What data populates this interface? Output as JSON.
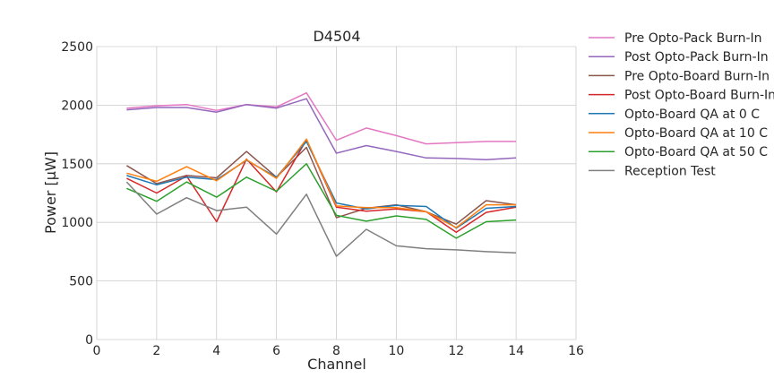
{
  "chart_data": {
    "type": "line",
    "title": "D4504",
    "xlabel": "Channel",
    "ylabel": "Power [μW]",
    "xlim": [
      0,
      16
    ],
    "ylim": [
      0,
      2500
    ],
    "xticks": [
      "0",
      "2",
      "4",
      "6",
      "8",
      "10",
      "12",
      "14",
      "16"
    ],
    "yticks": [
      "0",
      "500",
      "1000",
      "1500",
      "2000",
      "2500"
    ],
    "grid": true,
    "legend_position": "outside-right",
    "x": [
      1,
      2,
      3,
      4,
      5,
      6,
      7,
      8,
      9,
      10,
      11,
      12,
      13,
      14
    ],
    "series": [
      {
        "name": "Pre Opto-Pack Burn-In",
        "color": "#e377c2",
        "values": [
          1975,
          1995,
          2005,
          1955,
          2005,
          1985,
          2105,
          1700,
          1805,
          1740,
          1670,
          1680,
          1690,
          1690
        ]
      },
      {
        "name": "Post Opto-Pack Burn-In",
        "color": "#9467bd",
        "values": [
          1960,
          1980,
          1980,
          1940,
          2005,
          1975,
          2055,
          1590,
          1655,
          1605,
          1550,
          1545,
          1535,
          1550
        ]
      },
      {
        "name": "Pre Opto-Board Burn-In",
        "color": "#8c564b",
        "values": [
          1485,
          1330,
          1400,
          1380,
          1605,
          1385,
          1640,
          1040,
          1120,
          1150,
          1090,
          985,
          1185,
          1150
        ]
      },
      {
        "name": "Post Opto-Board Burn-In",
        "color": "#d62728",
        "values": [
          1375,
          1250,
          1395,
          1005,
          1540,
          1260,
          1705,
          1130,
          1095,
          1115,
          1090,
          915,
          1085,
          1130
        ]
      },
      {
        "name": "Opto-Board QA at 0 C",
        "color": "#1f77b4",
        "values": [
          1400,
          1320,
          1385,
          1365,
          1530,
          1385,
          1690,
          1165,
          1115,
          1145,
          1135,
          950,
          1120,
          1135
        ]
      },
      {
        "name": "Opto-Board QA at 10 C",
        "color": "#ff7f0e",
        "values": [
          1420,
          1350,
          1475,
          1355,
          1535,
          1375,
          1710,
          1140,
          1125,
          1125,
          1090,
          955,
          1150,
          1150
        ]
      },
      {
        "name": "Opto-Board QA at 50 C",
        "color": "#2ca02c",
        "values": [
          1290,
          1180,
          1345,
          1215,
          1385,
          1265,
          1500,
          1060,
          1010,
          1055,
          1025,
          865,
          1005,
          1020
        ]
      },
      {
        "name": "Reception Test",
        "color": "#7f7f7f",
        "values": [
          1345,
          1070,
          1210,
          1100,
          1130,
          900,
          1240,
          710,
          940,
          800,
          775,
          765,
          750,
          740
        ]
      }
    ]
  }
}
